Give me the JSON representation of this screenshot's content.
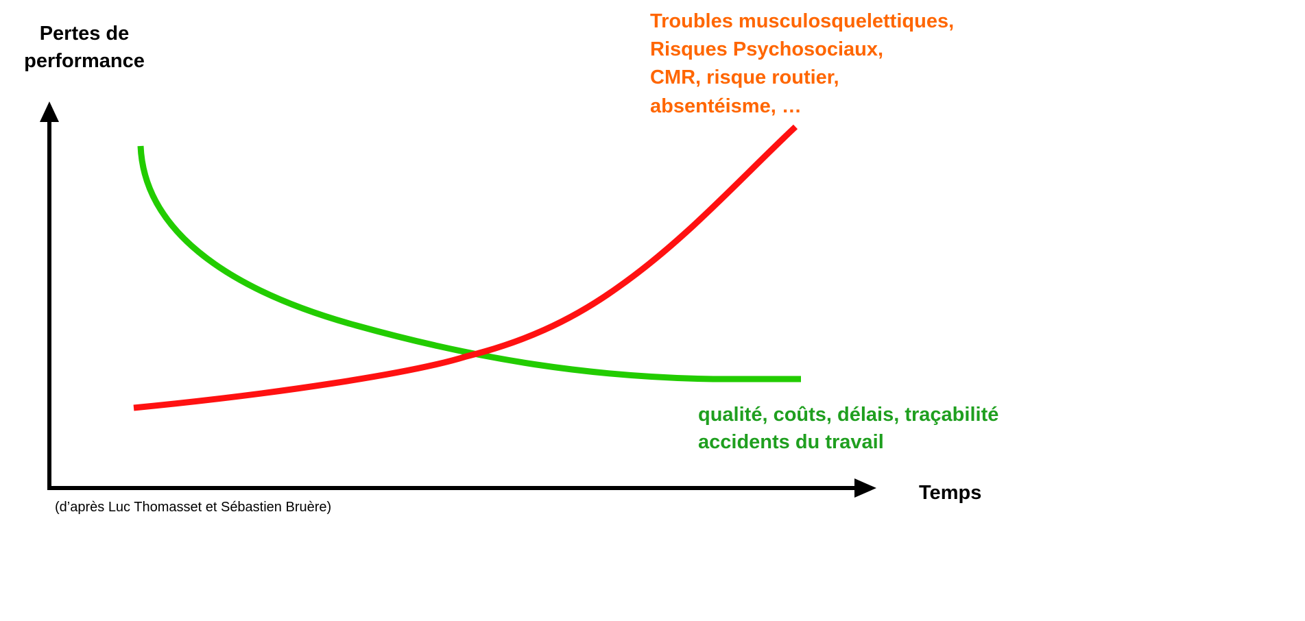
{
  "y_axis_label": [
    "Pertes de",
    "performance"
  ],
  "x_axis_label": "Temps",
  "red_curve_label": [
    "Troubles musculosquelettiques,",
    "Risques Psychosociaux,",
    "CMR, risque routier,",
    "absentéisme, …"
  ],
  "green_curve_label": [
    "qualité, coûts, délais, traçabilité",
    "accidents du travail"
  ],
  "source": "(d’après Luc Thomasset et Sébastien Bruère)"
}
